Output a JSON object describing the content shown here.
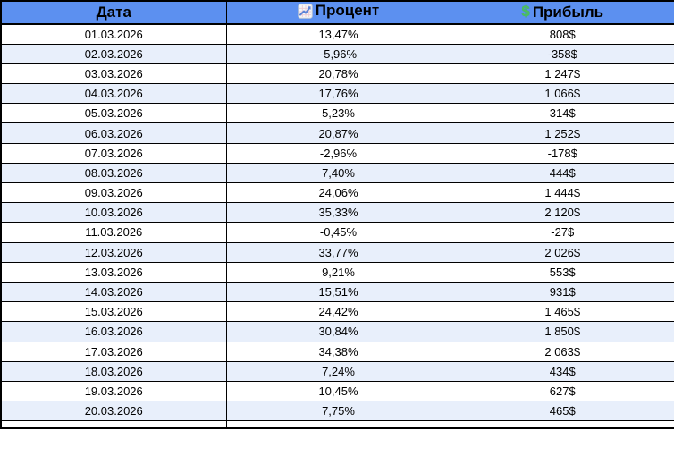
{
  "table": {
    "columns": [
      {
        "label": "Дата",
        "icon": "none"
      },
      {
        "label": "Процент",
        "icon": "chart-increasing"
      },
      {
        "label": "Прибыль",
        "icon": "dollar"
      }
    ],
    "rows": [
      {
        "date": "01.03.2026",
        "percent": "13,47%",
        "profit": "808$"
      },
      {
        "date": "02.03.2026",
        "percent": "-5,96%",
        "profit": "-358$"
      },
      {
        "date": "03.03.2026",
        "percent": "20,78%",
        "profit": "1 247$"
      },
      {
        "date": "04.03.2026",
        "percent": "17,76%",
        "profit": "1 066$"
      },
      {
        "date": "05.03.2026",
        "percent": "5,23%",
        "profit": "314$"
      },
      {
        "date": "06.03.2026",
        "percent": "20,87%",
        "profit": "1 252$"
      },
      {
        "date": "07.03.2026",
        "percent": "-2,96%",
        "profit": "-178$"
      },
      {
        "date": "08.03.2026",
        "percent": "7,40%",
        "profit": "444$"
      },
      {
        "date": "09.03.2026",
        "percent": "24,06%",
        "profit": "1 444$"
      },
      {
        "date": "10.03.2026",
        "percent": "35,33%",
        "profit": "2 120$"
      },
      {
        "date": "11.03.2026",
        "percent": "-0,45%",
        "profit": "-27$"
      },
      {
        "date": "12.03.2026",
        "percent": "33,77%",
        "profit": "2 026$"
      },
      {
        "date": "13.03.2026",
        "percent": "9,21%",
        "profit": "553$"
      },
      {
        "date": "14.03.2026",
        "percent": "15,51%",
        "profit": "931$"
      },
      {
        "date": "15.03.2026",
        "percent": "24,42%",
        "profit": "1 465$"
      },
      {
        "date": "16.03.2026",
        "percent": "30,84%",
        "profit": "1 850$"
      },
      {
        "date": "17.03.2026",
        "percent": "34,38%",
        "profit": "2 063$"
      },
      {
        "date": "18.03.2026",
        "percent": "7,24%",
        "profit": "434$"
      },
      {
        "date": "19.03.2026",
        "percent": "10,45%",
        "profit": "627$"
      },
      {
        "date": "20.03.2026",
        "percent": "7,75%",
        "profit": "465$"
      }
    ]
  },
  "colors": {
    "header_bg": "#5C90F0",
    "row_bg": "#FFFFFF",
    "row_alt_bg": "#E8EFFB",
    "border": "#000000",
    "text": "#000000",
    "dollar_icon_green": "#4CBF5F",
    "chart_icon_line_blue": "#5B83D8"
  }
}
